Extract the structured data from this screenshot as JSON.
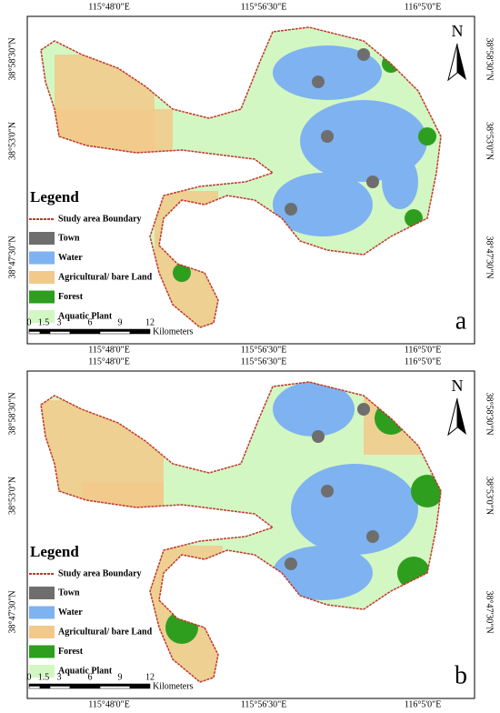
{
  "panels": [
    {
      "label": "a",
      "top_labels": [
        "115°48'0\"E",
        "115°56'30\"E",
        "116°5'0\"E"
      ],
      "bottom_labels": [
        "115°48'0\"E",
        "115°56'30\"E",
        "116°5'0\"E"
      ],
      "left_labels": [
        "38°58'30\"N",
        "38°53'0\"N",
        "38°47'30\"N"
      ],
      "right_labels": [
        "38°58'30\"N",
        "38°53'0\"N",
        "38°47'30\"N"
      ],
      "north": "N",
      "legend": {
        "title": "Legend",
        "boundary": {
          "label": "Study area Boundary",
          "color": "#c0392b"
        },
        "items": [
          {
            "label": "Town",
            "color": "#6e6e6e"
          },
          {
            "label": "Water",
            "color": "#7fb2f0"
          },
          {
            "label": "Agricultural/ bare Land",
            "color": "#f2c98a"
          },
          {
            "label": "Forest",
            "color": "#2e9e1f"
          },
          {
            "label": "Aquatic Plant",
            "color": "#d3f7c3"
          }
        ]
      },
      "scale": {
        "ticks": [
          "0",
          "1.5",
          "3",
          "6",
          "9",
          "12"
        ],
        "unit": "Kilometers"
      }
    },
    {
      "label": "b",
      "top_labels": [
        "115°48'0\"E",
        "115°56'30\"E",
        "116°5'0\"E"
      ],
      "bottom_labels": [
        "115°48'0\"E",
        "115°56'30\"E",
        "116°5'0\"E"
      ],
      "left_labels": [
        "38°58'30\"N",
        "38°53'0\"N",
        "38°47'30\"N"
      ],
      "right_labels": [
        "38°58'30\"N",
        "38°53'0\"N",
        "38°47'30\"N"
      ],
      "north": "N",
      "legend": {
        "title": "Legend",
        "boundary": {
          "label": "Study area Boundary",
          "color": "#c0392b"
        },
        "items": [
          {
            "label": "Town",
            "color": "#6e6e6e"
          },
          {
            "label": "Water",
            "color": "#7fb2f0"
          },
          {
            "label": "Agricultural/ bare Land",
            "color": "#f2c98a"
          },
          {
            "label": "Forest",
            "color": "#2e9e1f"
          },
          {
            "label": "Aquatic Plant",
            "color": "#d3f7c3"
          }
        ]
      },
      "scale": {
        "ticks": [
          "0",
          "1.5",
          "3",
          "6",
          "9",
          "12"
        ],
        "unit": "Kilometers"
      }
    }
  ]
}
